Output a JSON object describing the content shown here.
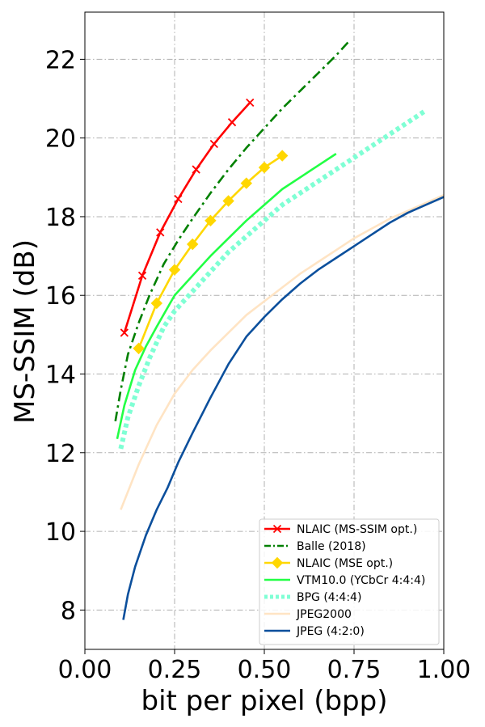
{
  "chart_data": {
    "type": "line",
    "title": "",
    "xlabel": "bit per pixel (bpp)",
    "ylabel": "MS-SSIM (dB)",
    "xlim": [
      0.0,
      1.0
    ],
    "ylim": [
      7.0,
      23.2
    ],
    "xticks": [
      0.0,
      0.25,
      0.5,
      0.75,
      1.0
    ],
    "xtick_labels": [
      "0.00",
      "0.25",
      "0.50",
      "0.75",
      "1.00"
    ],
    "yticks": [
      8,
      10,
      12,
      14,
      16,
      18,
      20,
      22
    ],
    "ytick_labels": [
      "8",
      "10",
      "12",
      "14",
      "16",
      "18",
      "20",
      "22"
    ],
    "grid": true,
    "legend_position": "lower-right",
    "series": [
      {
        "name": "NLAIC (MS-SSIM opt.)",
        "color": "#ff0000",
        "style": "solid",
        "marker": "x",
        "x": [
          0.11,
          0.16,
          0.21,
          0.26,
          0.31,
          0.36,
          0.41,
          0.46
        ],
        "y": [
          15.05,
          16.5,
          17.6,
          18.45,
          19.2,
          19.85,
          20.4,
          20.9
        ]
      },
      {
        "name": "Balle (2018)",
        "color": "#008000",
        "style": "dashdot",
        "marker": "",
        "x": [
          0.085,
          0.1,
          0.12,
          0.15,
          0.18,
          0.22,
          0.26,
          0.3,
          0.35,
          0.4,
          0.45,
          0.5,
          0.55,
          0.6,
          0.65,
          0.7,
          0.74
        ],
        "y": [
          12.8,
          13.6,
          14.5,
          15.3,
          16.0,
          16.8,
          17.4,
          17.95,
          18.6,
          19.2,
          19.75,
          20.25,
          20.75,
          21.2,
          21.65,
          22.1,
          22.5
        ]
      },
      {
        "name": "NLAIC (MSE opt.)",
        "color": "#ffd700",
        "style": "solid",
        "marker": "diamond",
        "x": [
          0.15,
          0.2,
          0.25,
          0.3,
          0.35,
          0.4,
          0.45,
          0.5,
          0.55
        ],
        "y": [
          14.65,
          15.8,
          16.65,
          17.3,
          17.9,
          18.4,
          18.85,
          19.25,
          19.55
        ]
      },
      {
        "name": "VTM10.0 (YCbCr 4:4:4)",
        "color": "#22ff44",
        "style": "solid",
        "marker": "",
        "x": [
          0.09,
          0.11,
          0.14,
          0.17,
          0.2,
          0.25,
          0.3,
          0.35,
          0.4,
          0.45,
          0.5,
          0.55,
          0.6,
          0.65,
          0.7
        ],
        "y": [
          12.35,
          13.2,
          14.1,
          14.7,
          15.2,
          16.0,
          16.5,
          17.0,
          17.45,
          17.9,
          18.3,
          18.7,
          19.0,
          19.3,
          19.6
        ]
      },
      {
        "name": "BPG (4:4:4)",
        "color": "#7fffd4",
        "style": "dotted",
        "marker": "",
        "x": [
          0.1,
          0.12,
          0.15,
          0.18,
          0.22,
          0.25,
          0.3,
          0.35,
          0.4,
          0.45,
          0.5,
          0.55,
          0.6,
          0.65,
          0.7,
          0.75,
          0.8,
          0.85,
          0.9,
          0.95
        ],
        "y": [
          12.1,
          12.9,
          13.7,
          14.4,
          15.2,
          15.6,
          16.1,
          16.6,
          17.1,
          17.5,
          17.9,
          18.3,
          18.6,
          18.9,
          19.2,
          19.5,
          19.8,
          20.1,
          20.4,
          20.7
        ]
      },
      {
        "name": "JPEG2000",
        "color": "#ffe4c4",
        "style": "solid",
        "marker": "",
        "x": [
          0.1,
          0.15,
          0.2,
          0.25,
          0.3,
          0.35,
          0.4,
          0.45,
          0.5,
          0.55,
          0.6,
          0.65,
          0.7,
          0.75,
          0.8,
          0.85,
          0.9,
          0.95,
          1.0
        ],
        "y": [
          10.55,
          11.7,
          12.7,
          13.5,
          14.1,
          14.6,
          15.05,
          15.5,
          15.85,
          16.2,
          16.55,
          16.85,
          17.15,
          17.45,
          17.7,
          17.95,
          18.15,
          18.35,
          18.55
        ]
      },
      {
        "name": "JPEG (4:2:0)",
        "color": "#0b4f9c",
        "style": "solid",
        "marker": "",
        "x": [
          0.107,
          0.12,
          0.14,
          0.17,
          0.2,
          0.23,
          0.26,
          0.3,
          0.35,
          0.4,
          0.45,
          0.5,
          0.55,
          0.6,
          0.65,
          0.7,
          0.75,
          0.8,
          0.85,
          0.9,
          0.95,
          1.0
        ],
        "y": [
          7.75,
          8.4,
          9.1,
          9.9,
          10.55,
          11.1,
          11.75,
          12.5,
          13.4,
          14.25,
          14.95,
          15.45,
          15.9,
          16.3,
          16.65,
          16.95,
          17.25,
          17.55,
          17.85,
          18.1,
          18.3,
          18.5
        ]
      }
    ]
  }
}
